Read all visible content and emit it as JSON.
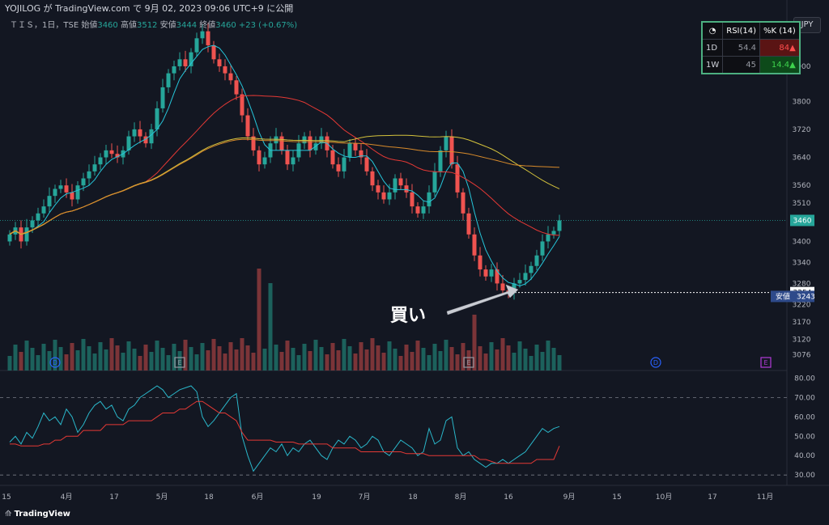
{
  "header": {
    "published": "YOJILOG が TradingView.com で 9月 02, 2023 09:06 UTC+9 に公開",
    "symbol": "ＴＩＳ，1日，TSE",
    "ohlc": [
      {
        "label": "始値",
        "value": "3460"
      },
      {
        "label": "高値",
        "value": "3512"
      },
      {
        "label": "安値",
        "value": "3444"
      },
      {
        "label": "終値",
        "value": "3460"
      }
    ],
    "change": "+23 (+0.67%)"
  },
  "currency_button": "JPY",
  "rsi_table": {
    "icon": "stopwatch-icon",
    "headers": [
      "RSI(14)",
      "%K (14)"
    ],
    "rows": [
      {
        "tf": "1D",
        "rsi": "54.4",
        "k": "84▲",
        "k_color": "red"
      },
      {
        "tf": "1W",
        "rsi": "45",
        "k": "14.4▲",
        "k_color": "green"
      }
    ]
  },
  "annotation": {
    "text": "買い"
  },
  "footer": {
    "brand": "TradingView"
  },
  "colors": {
    "background": "#131722",
    "up": "#26a69a",
    "down": "#ef5350",
    "ma_short": "#26c6da",
    "ma_mid": "#e53935",
    "ma_long": "#d4c23c",
    "ma_long2": "#d98b2b",
    "stoch": "#2ab7ca",
    "stoch_signal": "#e53935"
  },
  "chart_data": {
    "type": "candlestick",
    "price_axis": {
      "ticks": [
        "3900",
        "3800",
        "3720",
        "3640",
        "3560",
        "3510",
        "3400",
        "3340",
        "3280",
        "3220",
        "3170",
        "3120",
        "3076"
      ],
      "last_price_label": "3460",
      "marker_label": "3254",
      "low_label": {
        "text": "安値",
        "value": "3243"
      }
    },
    "x_axis": {
      "ticks": [
        "15",
        "4月",
        "17",
        "5月",
        "18",
        "6月",
        "19",
        "7月",
        "18",
        "8月",
        "16",
        "9月",
        "15",
        "10月",
        "17",
        "11月"
      ]
    },
    "event_markers": [
      {
        "type": "D",
        "date": "3月末"
      },
      {
        "type": "E",
        "date": "5月"
      },
      {
        "type": "E",
        "date": "8月"
      },
      {
        "type": "D",
        "date": "9月末"
      },
      {
        "type": "E",
        "date": "11月"
      }
    ],
    "oscillator_axis": {
      "ticks": [
        "80.00",
        "70.00",
        "60.00",
        "50.00",
        "40.00",
        "30.00"
      ],
      "levels": [
        70,
        30
      ]
    },
    "closes": [
      3420,
      3440,
      3400,
      3440,
      3460,
      3480,
      3500,
      3530,
      3550,
      3560,
      3540,
      3520,
      3560,
      3580,
      3600,
      3620,
      3640,
      3660,
      3650,
      3640,
      3660,
      3700,
      3720,
      3700,
      3680,
      3720,
      3780,
      3840,
      3880,
      3900,
      3920,
      3900,
      3940,
      3980,
      4000,
      3960,
      3920,
      3900,
      3880,
      3860,
      3820,
      3760,
      3700,
      3660,
      3620,
      3640,
      3680,
      3700,
      3660,
      3620,
      3640,
      3680,
      3700,
      3660,
      3680,
      3700,
      3660,
      3620,
      3600,
      3640,
      3680,
      3660,
      3640,
      3600,
      3560,
      3540,
      3520,
      3540,
      3580,
      3560,
      3540,
      3500,
      3480,
      3500,
      3540,
      3600,
      3660,
      3700,
      3620,
      3540,
      3480,
      3420,
      3360,
      3320,
      3300,
      3320,
      3280,
      3260,
      3254,
      3280,
      3290,
      3310,
      3330,
      3360,
      3400,
      3420,
      3430,
      3460
    ],
    "stoch_k": [
      47,
      50,
      46,
      52,
      49,
      55,
      62,
      58,
      60,
      56,
      64,
      60,
      52,
      56,
      62,
      66,
      68,
      64,
      66,
      60,
      58,
      64,
      66,
      70,
      72,
      74,
      76,
      74,
      70,
      72,
      74,
      75,
      76,
      73,
      60,
      55,
      58,
      62,
      66,
      70,
      72,
      50,
      40,
      32,
      36,
      40,
      44,
      42,
      46,
      40,
      44,
      42,
      46,
      48,
      44,
      40,
      38,
      44,
      48,
      46,
      50,
      48,
      44,
      46,
      50,
      48,
      42,
      40,
      44,
      48,
      46,
      44,
      40,
      42,
      54,
      46,
      48,
      58,
      60,
      44,
      40,
      42,
      38,
      36,
      34,
      36,
      36,
      38,
      36,
      38,
      40,
      42,
      46,
      50,
      54,
      52,
      54,
      55
    ],
    "stoch_d": [
      46,
      46,
      45,
      45,
      45,
      45,
      46,
      46,
      48,
      48,
      50,
      50,
      50,
      53,
      53,
      53,
      53,
      56,
      56,
      56,
      56,
      58,
      58,
      58,
      58,
      58,
      60,
      62,
      62,
      62,
      64,
      64,
      66,
      68,
      68,
      66,
      64,
      62,
      62,
      60,
      58,
      52,
      48,
      48,
      48,
      48,
      48,
      47,
      47,
      47,
      47,
      46,
      46,
      46,
      46,
      46,
      46,
      44,
      44,
      44,
      44,
      44,
      42,
      42,
      42,
      42,
      42,
      42,
      42,
      42,
      41,
      41,
      41,
      41,
      40,
      40,
      40,
      40,
      40,
      40,
      40,
      40,
      40,
      38,
      38,
      37,
      36,
      36,
      36,
      36,
      36,
      36,
      36,
      38,
      38,
      38,
      38,
      45
    ]
  }
}
